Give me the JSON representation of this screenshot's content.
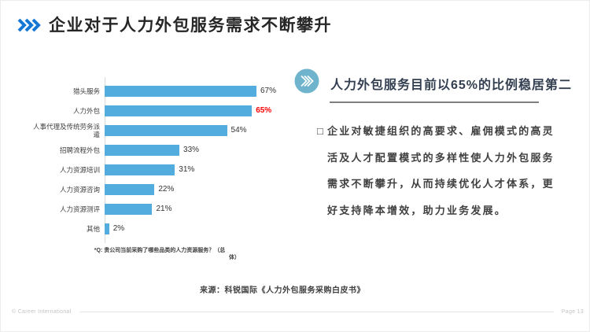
{
  "slide": {
    "title": "企业对于人力外包服务需求不断攀升"
  },
  "chart_data": {
    "type": "bar",
    "orientation": "horizontal",
    "categories": [
      "猎头服务",
      "人力外包",
      "人事代理及传统劳务派遣",
      "招聘流程外包",
      "人力资源培训",
      "人力资源咨询",
      "人力资源测评",
      "其他"
    ],
    "values": [
      67,
      65,
      54,
      33,
      31,
      22,
      21,
      2
    ],
    "unit": "%",
    "value_axis_range": [
      0,
      70
    ],
    "grid": false,
    "legend": false,
    "bar_color": "#53acde",
    "highlight_index": 1,
    "highlight_color": "#ff0000",
    "question_note_lines": [
      "*Q: 贵公司当前采购了哪些品类的人力资源服务？（总",
      "体）"
    ]
  },
  "right_panel": {
    "heading": "人力外包服务目前以65%的比例稳居第二",
    "bullet_char": "□",
    "body_lines": [
      "企业对敏捷组织的高要求、雇佣模式的高灵",
      "活及人才配置模式的多样性使人力外包服务",
      "需求不断攀升，从而持续优化人才体系，更",
      "好支持降本增效，助力业务发展。"
    ]
  },
  "source": "来源：科锐国际《人力外包服务采购白皮书》",
  "footer": {
    "copyright": "© Career International",
    "page": "Page 13"
  },
  "colors": {
    "accent_blue": "#1677d4",
    "bar_blue": "#53acde",
    "icon_circle": "#6fb4cc",
    "highlight_red": "#ff0000",
    "divider_gray": "#7f7f7f"
  }
}
